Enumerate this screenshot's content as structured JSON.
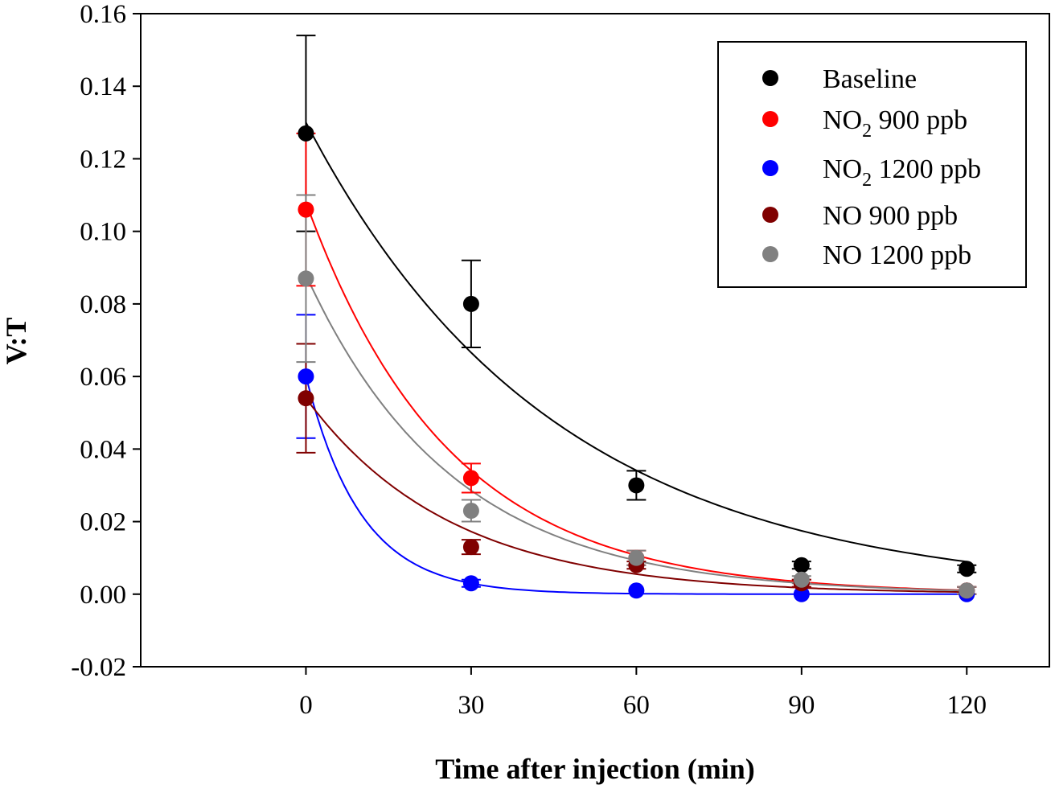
{
  "chart_data": {
    "type": "scatter",
    "title": "",
    "xlabel": "Time after injection (min)",
    "ylabel": "V:T",
    "xlim": [
      -30,
      135
    ],
    "ylim": [
      -0.02,
      0.16
    ],
    "x_ticks": [
      0,
      30,
      60,
      90,
      120
    ],
    "y_ticks": [
      -0.02,
      0.0,
      0.02,
      0.04,
      0.06,
      0.08,
      0.1,
      0.12,
      0.14,
      0.16
    ],
    "y_tick_labels": [
      "-0.02",
      "0.00",
      "0.02",
      "0.04",
      "0.06",
      "0.08",
      "0.10",
      "0.12",
      "0.14",
      "0.16"
    ],
    "x_tick_labels": [
      "0",
      "30",
      "60",
      "90",
      "120"
    ],
    "grid": false,
    "legend_position": "top-right",
    "x": [
      0,
      30,
      60,
      90,
      120
    ],
    "series": [
      {
        "name": "Baseline",
        "label_main": "Baseline",
        "label_sub": "",
        "label_rest": "",
        "color": "#000000",
        "values": [
          0.127,
          0.08,
          0.03,
          0.008,
          0.007
        ],
        "errors": [
          0.027,
          0.012,
          0.004,
          0.001,
          0.001
        ],
        "fit": {
          "a": 0.13,
          "k": 0.0223
        }
      },
      {
        "name": "NO2 900 ppb",
        "label_main": "NO",
        "label_sub": "2",
        "label_rest": " 900 ppb",
        "color": "#ff0000",
        "values": [
          0.106,
          0.032,
          0.01,
          0.003,
          0.001
        ],
        "errors": [
          0.021,
          0.004,
          0.002,
          0.001,
          0.001
        ],
        "fit": {
          "a": 0.108,
          "k": 0.0385
        }
      },
      {
        "name": "NO2 1200 ppb",
        "label_main": "NO",
        "label_sub": "2",
        "label_rest": " 1200 ppb",
        "color": "#0000ff",
        "values": [
          0.06,
          0.003,
          0.001,
          0.0,
          0.0
        ],
        "errors": [
          0.017,
          0.001,
          0.0,
          0.0,
          0.0
        ],
        "fit": {
          "a": 0.06,
          "k": 0.1
        }
      },
      {
        "name": "NO 900 ppb",
        "label_main": "NO 900 ppb",
        "label_sub": "",
        "label_rest": "",
        "color": "#800000",
        "values": [
          0.054,
          0.013,
          0.008,
          0.003,
          0.001
        ],
        "errors": [
          0.015,
          0.002,
          0.001,
          0.001,
          0.001
        ],
        "fit": {
          "a": 0.054,
          "k": 0.038
        }
      },
      {
        "name": "NO 1200 ppb",
        "label_main": "NO 1200 ppb",
        "label_sub": "",
        "label_rest": "",
        "color": "#808080",
        "values": [
          0.087,
          0.023,
          0.01,
          0.004,
          0.001
        ],
        "errors": [
          0.023,
          0.003,
          0.002,
          0.001,
          0.001
        ],
        "fit": {
          "a": 0.088,
          "k": 0.0375
        }
      }
    ]
  }
}
